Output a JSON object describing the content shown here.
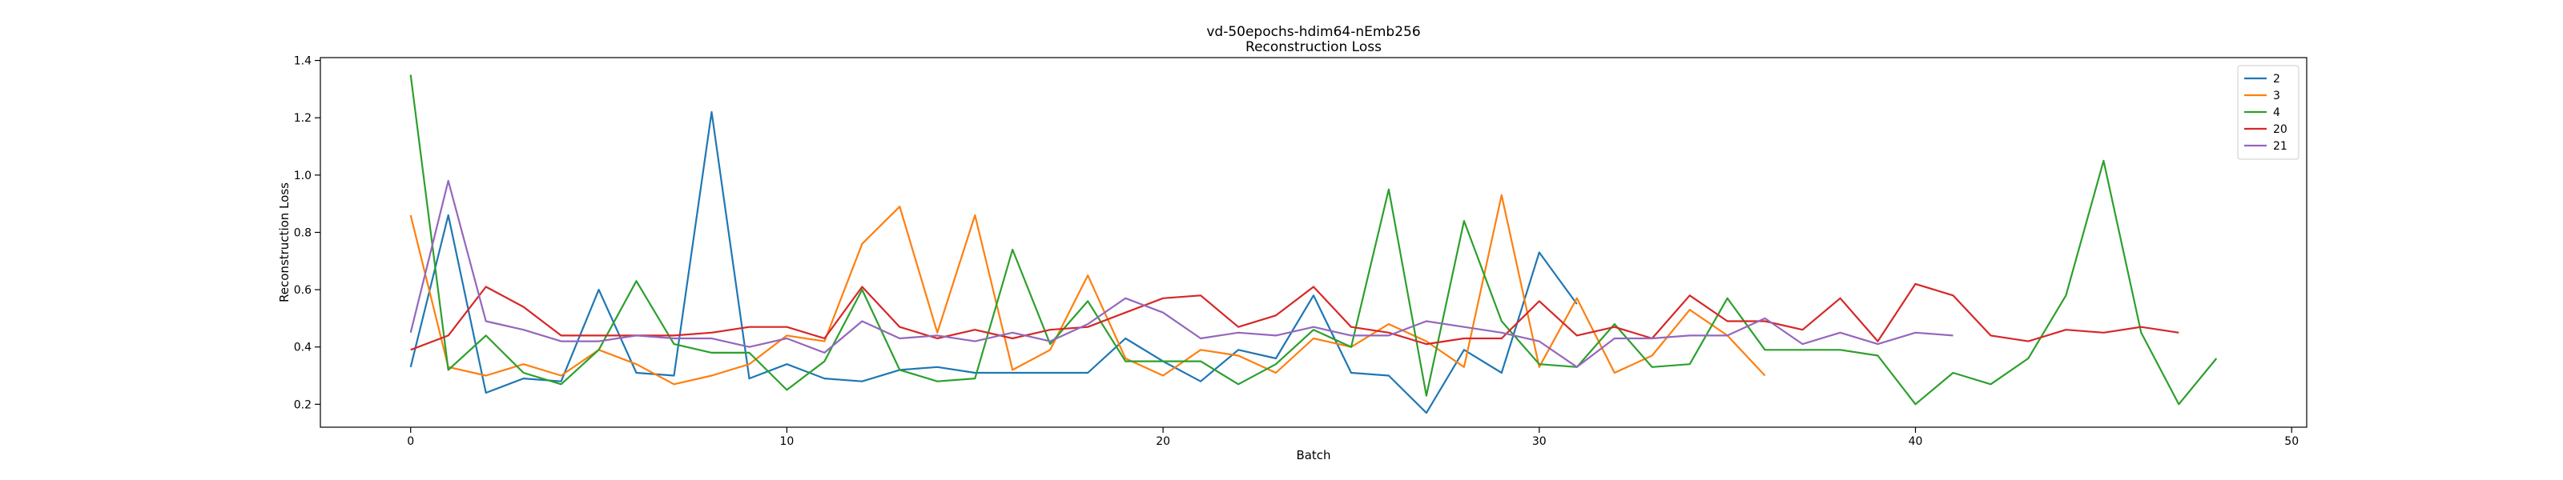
{
  "chart_data": {
    "type": "line",
    "title": "vd-50epochs-hdim64-nEmb256",
    "subtitle": "Reconstruction Loss",
    "xlabel": "Batch",
    "ylabel": "Reconstruction Loss",
    "xlim": [
      -2.4,
      50.4
    ],
    "ylim": [
      0.12,
      1.41
    ],
    "xticks": [
      0,
      10,
      20,
      30,
      40,
      50
    ],
    "yticks": [
      0.2,
      0.4,
      0.6,
      0.8,
      1.0,
      1.2,
      1.4
    ],
    "grid": false,
    "legend_position": "top-right",
    "series": [
      {
        "name": "2",
        "color": "#1f77b4",
        "values": [
          0.33,
          0.86,
          0.24,
          0.29,
          0.28,
          0.6,
          0.31,
          0.3,
          1.22,
          0.29,
          0.34,
          0.29,
          0.28,
          0.32,
          0.33,
          0.31,
          0.31,
          0.31,
          0.31,
          0.43,
          0.35,
          0.28,
          0.39,
          0.36,
          0.58,
          0.31,
          0.3,
          0.17,
          0.39,
          0.31,
          0.73,
          0.55
        ]
      },
      {
        "name": "3",
        "color": "#ff7f0e",
        "values": [
          0.86,
          0.33,
          0.3,
          0.34,
          0.3,
          0.39,
          0.34,
          0.27,
          0.3,
          0.34,
          0.44,
          0.42,
          0.76,
          0.89,
          0.45,
          0.86,
          0.32,
          0.39,
          0.65,
          0.36,
          0.3,
          0.39,
          0.37,
          0.31,
          0.43,
          0.4,
          0.48,
          0.42,
          0.33,
          0.93,
          0.33,
          0.57,
          0.31,
          0.37,
          0.53,
          0.44,
          0.3
        ]
      },
      {
        "name": "4",
        "color": "#2ca02c",
        "values": [
          1.35,
          0.32,
          0.44,
          0.31,
          0.27,
          0.39,
          0.63,
          0.41,
          0.38,
          0.38,
          0.25,
          0.35,
          0.6,
          0.32,
          0.28,
          0.29,
          0.74,
          0.41,
          0.56,
          0.35,
          0.35,
          0.35,
          0.27,
          0.34,
          0.46,
          0.4,
          0.95,
          0.23,
          0.84,
          0.49,
          0.34,
          0.33,
          0.48,
          0.33,
          0.34,
          0.57,
          0.39,
          0.39,
          0.39,
          0.37,
          0.2,
          0.31,
          0.27,
          0.36,
          0.58,
          1.05,
          0.45,
          0.2,
          0.36
        ]
      },
      {
        "name": "20",
        "color": "#d62728",
        "values": [
          0.39,
          0.44,
          0.61,
          0.54,
          0.44,
          0.44,
          0.44,
          0.44,
          0.45,
          0.47,
          0.47,
          0.43,
          0.61,
          0.47,
          0.43,
          0.46,
          0.43,
          0.46,
          0.47,
          0.52,
          0.57,
          0.58,
          0.47,
          0.51,
          0.61,
          0.47,
          0.45,
          0.41,
          0.43,
          0.43,
          0.56,
          0.44,
          0.47,
          0.43,
          0.58,
          0.49,
          0.49,
          0.46,
          0.57,
          0.42,
          0.62,
          0.58,
          0.44,
          0.42,
          0.46,
          0.45,
          0.47,
          0.45
        ]
      },
      {
        "name": "21",
        "color": "#9467bd",
        "values": [
          0.45,
          0.98,
          0.49,
          0.46,
          0.42,
          0.42,
          0.44,
          0.43,
          0.43,
          0.4,
          0.43,
          0.38,
          0.49,
          0.43,
          0.44,
          0.42,
          0.45,
          0.42,
          0.48,
          0.57,
          0.52,
          0.43,
          0.45,
          0.44,
          0.47,
          0.44,
          0.44,
          0.49,
          0.47,
          0.45,
          0.42,
          0.33,
          0.43,
          0.43,
          0.44,
          0.44,
          0.5,
          0.41,
          0.45,
          0.41,
          0.45,
          0.44
        ]
      }
    ]
  }
}
